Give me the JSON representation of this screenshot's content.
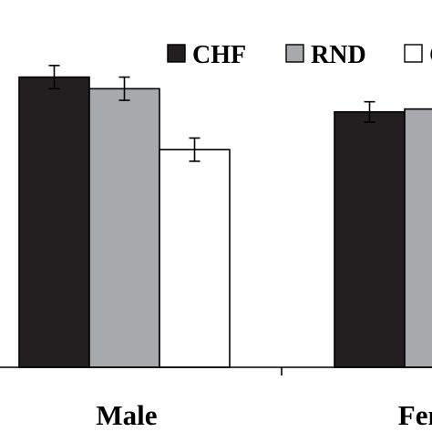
{
  "chart_data": {
    "type": "bar",
    "categories": [
      "Male",
      "Female"
    ],
    "series": [
      {
        "name": "CHF",
        "color": "#231f20",
        "values": [
          100,
          88
        ],
        "errors": [
          4,
          3.5
        ]
      },
      {
        "name": "RND",
        "color": "#a7a9ac",
        "values": [
          96,
          89
        ],
        "errors": [
          4,
          null
        ]
      },
      {
        "name": "CR",
        "color": "#ffffff",
        "values": [
          75,
          null
        ],
        "errors": [
          4,
          null
        ]
      }
    ],
    "legend_position": "top-right",
    "ylim": [
      0,
      110
    ],
    "grid": false,
    "title": "",
    "xlabel": "",
    "ylabel": ""
  }
}
